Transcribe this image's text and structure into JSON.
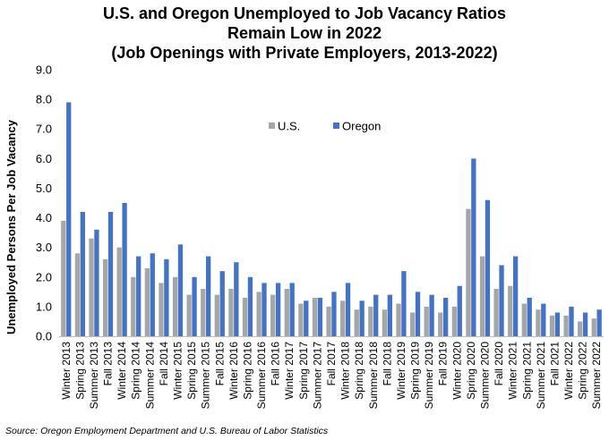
{
  "chart_data": {
    "type": "bar",
    "title": [
      "U.S. and Oregon Unemployed to Job Vacancy Ratios",
      "Remain Low in 2022",
      "(Job Openings with Private Employers, 2013-2022)"
    ],
    "xlabel": "",
    "ylabel": "Unemployed Persons Per Job Vacancy",
    "ylim": [
      0,
      9
    ],
    "yticks": [
      "0.0",
      "1.0",
      "2.0",
      "3.0",
      "4.0",
      "5.0",
      "6.0",
      "7.0",
      "8.0",
      "9.0"
    ],
    "grid": false,
    "legend_position": "top-center",
    "categories": [
      "Winter 2013",
      "Spring 2013",
      "Summer 2013",
      "Fall 2013",
      "Winter 2014",
      "Spring 2014",
      "Summer 2014",
      "Fall 2014",
      "Winter 2015",
      "Spring 2015",
      "Summer 2015",
      "Fall 2015",
      "Winter 2016",
      "Spring 2016",
      "Summer 2016",
      "Fall 2016",
      "Winter 2017",
      "Spring 2017",
      "Summer 2017",
      "Fall 2017",
      "Winter 2018",
      "Spring 2018",
      "Summer 2018",
      "Fall 2018",
      "Winter 2019",
      "Spring 2019",
      "Summer 2019",
      "Fall 2019",
      "Winter 2020",
      "Spring 2020",
      "Summer 2020",
      "Fall 2020",
      "Winter 2021",
      "Spring 2021",
      "Summer 2021",
      "Fall 2021",
      "Winter 2022",
      "Spring 2022",
      "Summer 2022"
    ],
    "series": [
      {
        "name": "U.S.",
        "color": "#a6a6a6",
        "values": [
          3.9,
          2.8,
          3.3,
          2.6,
          3.0,
          2.0,
          2.3,
          1.8,
          2.0,
          1.4,
          1.6,
          1.4,
          1.6,
          1.3,
          1.5,
          1.4,
          1.6,
          1.1,
          1.3,
          1.0,
          1.2,
          0.9,
          1.0,
          0.9,
          1.1,
          0.8,
          1.0,
          0.8,
          1.0,
          4.3,
          2.7,
          1.6,
          1.7,
          1.1,
          0.9,
          0.7,
          0.7,
          0.5,
          0.6
        ]
      },
      {
        "name": "Oregon",
        "color": "#4472c4",
        "values": [
          7.9,
          4.2,
          3.6,
          4.2,
          4.5,
          2.7,
          2.8,
          2.6,
          3.1,
          2.0,
          2.7,
          2.2,
          2.5,
          2.0,
          1.8,
          1.8,
          1.8,
          1.2,
          1.3,
          1.5,
          1.8,
          1.2,
          1.4,
          1.4,
          2.2,
          1.5,
          1.4,
          1.3,
          1.7,
          6.0,
          4.6,
          2.4,
          2.7,
          1.3,
          1.1,
          0.8,
          1.0,
          0.8,
          0.9
        ]
      }
    ]
  },
  "source": "Source: Oregon Employment Department and U.S. Bureau of Labor Statistics"
}
